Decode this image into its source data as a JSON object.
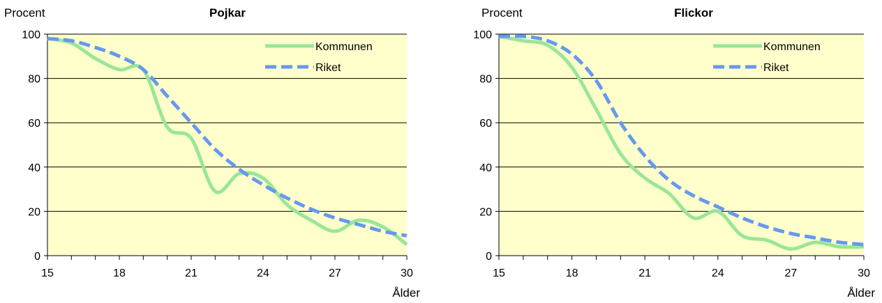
{
  "colors": {
    "plot_bg": "#ffffcc",
    "kommunen": "#99e699",
    "riket": "#6699ee",
    "grid": "#000000"
  },
  "chart_data": [
    {
      "type": "line",
      "title": "Pojkar",
      "ylabel": "Procent",
      "xlabel": "Ålder",
      "xlim": [
        15,
        30
      ],
      "ylim": [
        0,
        100
      ],
      "xticks": [
        15,
        18,
        21,
        24,
        27,
        30
      ],
      "yticks": [
        0,
        20,
        40,
        60,
        80,
        100
      ],
      "grid": "horizontal",
      "legend": "top-right",
      "series": [
        {
          "name": "Kommunen",
          "style": "solid",
          "x": [
            15,
            16,
            17,
            18,
            19,
            20,
            21,
            22,
            23,
            24,
            25,
            26,
            27,
            28,
            29,
            30
          ],
          "values": [
            98,
            96,
            89,
            84,
            84,
            58,
            53,
            29,
            37,
            35,
            23,
            16,
            11,
            16,
            13,
            5
          ]
        },
        {
          "name": "Riket",
          "style": "dashed",
          "x": [
            15,
            16,
            17,
            18,
            19,
            20,
            21,
            22,
            23,
            24,
            25,
            26,
            27,
            28,
            29,
            30
          ],
          "values": [
            98,
            97,
            94,
            90,
            84,
            72,
            60,
            48,
            39,
            32,
            26,
            21,
            17,
            14,
            11,
            9
          ]
        }
      ]
    },
    {
      "type": "line",
      "title": "Flickor",
      "ylabel": "Procent",
      "xlabel": "Ålder",
      "xlim": [
        15,
        30
      ],
      "ylim": [
        0,
        100
      ],
      "xticks": [
        15,
        18,
        21,
        24,
        27,
        30
      ],
      "yticks": [
        0,
        20,
        40,
        60,
        80,
        100
      ],
      "grid": "horizontal",
      "legend": "top-right",
      "series": [
        {
          "name": "Kommunen",
          "style": "solid",
          "x": [
            15,
            16,
            17,
            18,
            19,
            20,
            21,
            22,
            23,
            24,
            25,
            26,
            27,
            28,
            29,
            30
          ],
          "values": [
            99,
            97,
            95,
            85,
            66,
            46,
            35,
            28,
            17,
            20,
            9,
            7,
            3,
            6,
            4,
            4
          ]
        },
        {
          "name": "Riket",
          "style": "dashed",
          "x": [
            15,
            16,
            17,
            18,
            19,
            20,
            21,
            22,
            23,
            24,
            25,
            26,
            27,
            28,
            29,
            30
          ],
          "values": [
            99,
            99,
            97,
            91,
            79,
            60,
            45,
            34,
            27,
            22,
            17,
            13,
            10,
            8,
            6,
            5
          ]
        }
      ]
    }
  ]
}
